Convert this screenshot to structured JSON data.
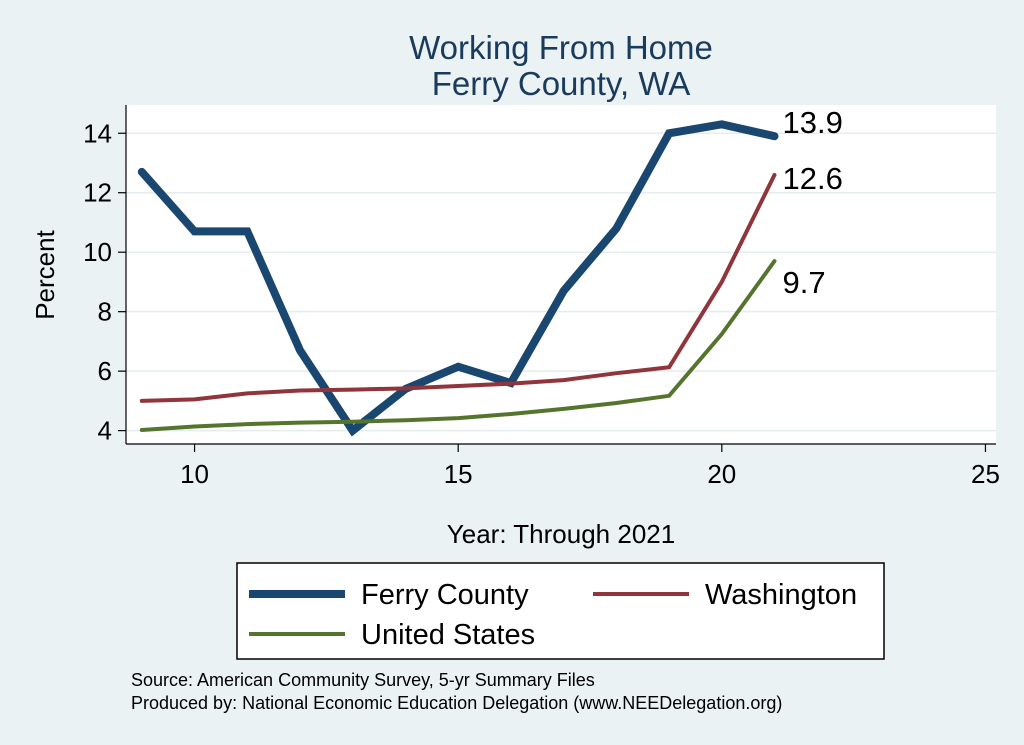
{
  "chart_data": {
    "type": "line",
    "title": "Working From Home",
    "subtitle": "Ferry County, WA",
    "xlabel": "Year: Through 2021",
    "ylabel": "Percent",
    "xlim": [
      8.7,
      25.2
    ],
    "ylim": [
      3.55,
      14.95
    ],
    "xticks": [
      10,
      15,
      20,
      25
    ],
    "yticks": [
      4,
      6,
      8,
      10,
      12,
      14
    ],
    "grid": true,
    "legend_position": "bottom",
    "series": [
      {
        "name": "Ferry County",
        "color": "#1a476f",
        "x": [
          9,
          10,
          11,
          12,
          13,
          14,
          15,
          16,
          17,
          18,
          19,
          20,
          21
        ],
        "values": [
          12.7,
          10.7,
          10.7,
          6.7,
          4.0,
          5.4,
          6.15,
          5.6,
          8.7,
          10.8,
          14.0,
          14.3,
          13.9
        ],
        "end_label": "13.9"
      },
      {
        "name": "Washington",
        "color": "#90353b",
        "x": [
          9,
          10,
          11,
          12,
          13,
          14,
          15,
          16,
          17,
          18,
          19,
          20,
          21
        ],
        "values": [
          5.0,
          5.05,
          5.25,
          5.35,
          5.38,
          5.42,
          5.5,
          5.58,
          5.7,
          5.93,
          6.13,
          9.0,
          12.6
        ],
        "end_label": "12.6"
      },
      {
        "name": "United States",
        "color": "#55752f",
        "x": [
          9,
          10,
          11,
          12,
          13,
          14,
          15,
          16,
          17,
          18,
          19,
          20,
          21
        ],
        "values": [
          4.02,
          4.14,
          4.22,
          4.27,
          4.3,
          4.35,
          4.42,
          4.56,
          4.73,
          4.93,
          5.17,
          7.25,
          9.7
        ],
        "end_label": "9.7"
      }
    ]
  },
  "source_lines": [
    "Source: American Community Survey, 5-yr Summary Files",
    "Produced by: National Economic Education Delegation (www.NEEDelegation.org)"
  ]
}
